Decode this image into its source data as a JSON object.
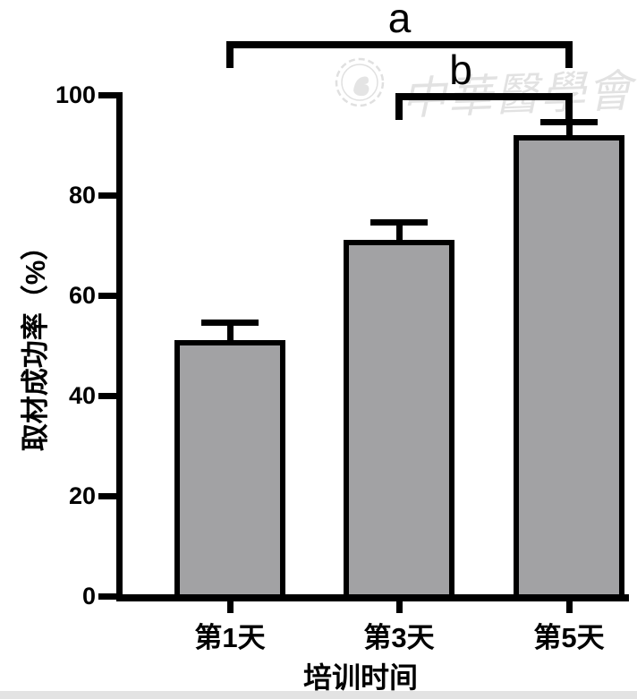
{
  "watermark": {
    "text": "中華醫學會",
    "seal_icon": "chinese-medical-association-seal",
    "color": "#e2e2e2"
  },
  "chart_data": {
    "type": "bar",
    "title": "",
    "xlabel": "培训时间",
    "ylabel": "取材成功率（%）",
    "categories": [
      "第1天",
      "第3天",
      "第5天"
    ],
    "values": [
      51,
      71,
      92
    ],
    "errors": [
      3.5,
      3.5,
      2.5
    ],
    "yticks": [
      0,
      20,
      40,
      60,
      80,
      100
    ],
    "ylim": [
      0,
      100
    ],
    "grid": false,
    "legend_position": "none",
    "bar_fill_color": "#a2a2a4",
    "bar_border_color": "#000000",
    "axis_color": "#000000",
    "significance_brackets": [
      {
        "label": "a",
        "from_category": "第1天",
        "to_category": "第5天"
      },
      {
        "label": "b",
        "from_category": "第3天",
        "to_category": "第5天"
      }
    ]
  }
}
